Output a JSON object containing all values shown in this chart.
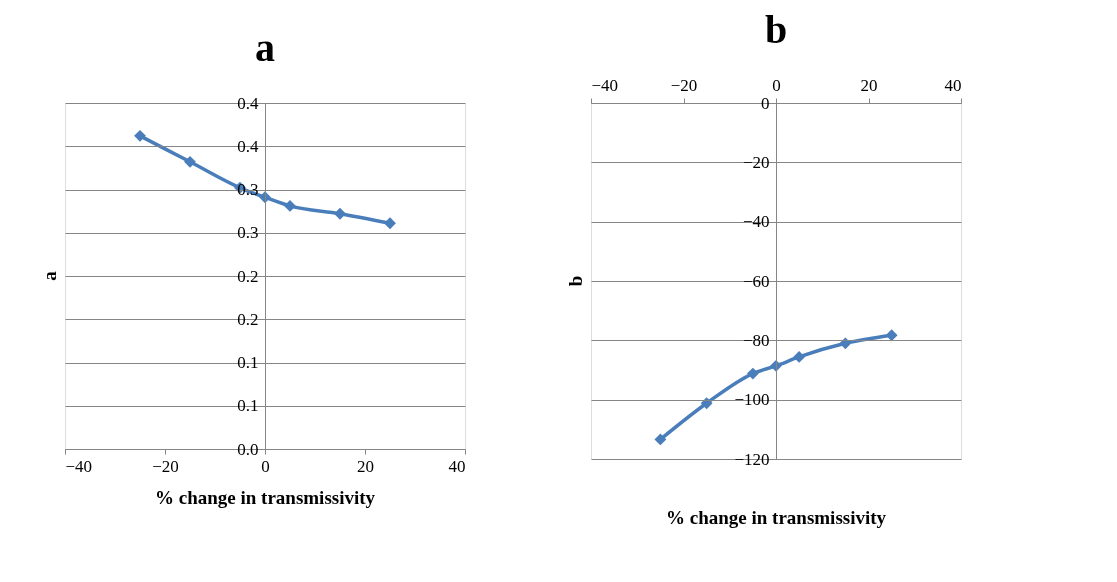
{
  "chart_data": [
    {
      "type": "line",
      "title": "a",
      "xlabel": "% change in transmissivity",
      "ylabel": "a",
      "x": [
        -25,
        -15,
        -5,
        0,
        5,
        15,
        25
      ],
      "series": [
        {
          "color": "#4a7ebb",
          "values": [
            0.362,
            0.332,
            0.302,
            0.291,
            0.281,
            0.272,
            0.261
          ]
        }
      ],
      "xlim": [
        -40,
        40
      ],
      "xticks": [
        -40,
        -20,
        0,
        20,
        40
      ],
      "ylim": [
        0,
        0.4
      ],
      "yticks": [
        {
          "value": 0,
          "label": "0.0"
        },
        {
          "value": 0.05,
          "label": "0.1"
        },
        {
          "value": 0.1,
          "label": "0.1"
        },
        {
          "value": 0.15,
          "label": "0.2"
        },
        {
          "value": 0.2,
          "label": "0.2"
        },
        {
          "value": 0.25,
          "label": "0.3"
        },
        {
          "value": 0.3,
          "label": "0.3"
        },
        {
          "value": 0.35,
          "label": "0.4"
        },
        {
          "value": 0.4,
          "label": "0.4"
        }
      ],
      "grid": "y",
      "marker": "diamond",
      "line_style": "solid"
    },
    {
      "type": "line",
      "title": "b",
      "xlabel": "% change in transmissivity",
      "ylabel": "b",
      "x": [
        -25,
        -15,
        -5,
        0,
        5,
        15,
        25
      ],
      "series": [
        {
          "color": "#4a7ebb",
          "values": [
            -113.4,
            -101.2,
            -91.2,
            -88.6,
            -85.6,
            -81,
            -78.3
          ]
        }
      ],
      "xlim": [
        -40,
        40
      ],
      "xticks": [
        -40,
        -20,
        0,
        20,
        40
      ],
      "ylim": [
        -120,
        0
      ],
      "yticks": [
        -120,
        -100,
        -80,
        -60,
        -40,
        -20,
        0
      ],
      "grid": "y",
      "marker": "diamond",
      "line_style": "solid"
    }
  ]
}
